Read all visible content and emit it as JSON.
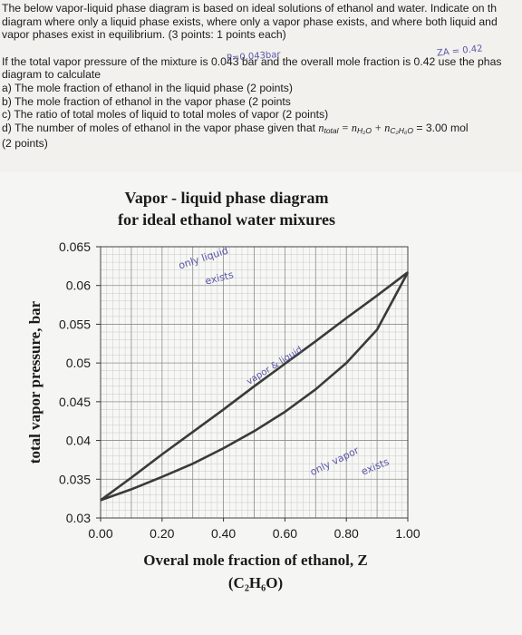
{
  "problem": {
    "intro_line1": "The below vapor-liquid phase diagram is based on ideal solutions of ethanol and water.  Indicate on th",
    "intro_line2": "diagram where only a liquid phase exists, where only a vapor phase exists, and where both liquid and",
    "intro_line3": "vapor phases exist in equilibrium.  (3 points: 1 points each)",
    "given_line1": "If the total vapor pressure of the mixture is 0.043 bar and the overall mole fraction is 0.42 use the phas",
    "given_line2": "diagram to calculate",
    "part_a": "a)  The mole fraction of ethanol in the liquid phase  (2 points)",
    "part_b": "b)  The mole fraction of ethanol in the vapor phase (2 points",
    "part_c": "c)  The ratio of total moles of liquid to total moles of vapor (2 points)",
    "part_d_text": "d)  The number of moles of ethanol in the vapor phase given that ",
    "part_d_ntotal": "n",
    "part_d_ntotal_sub": "total",
    "part_d_eq": " = n",
    "part_d_h2o_sub": "H₂O",
    "part_d_plus": " + n",
    "part_d_eth_sub": "C₂H₆O",
    "part_d_value": " = 3.00 mol",
    "part_d_points": "(2 points)"
  },
  "handwriting": {
    "pressure_note": "P=0.043bar",
    "z_note": "ZA = 0.42",
    "region_liquid_1": "only liquid",
    "region_liquid_2": "exists",
    "region_two_phase": "vapor & liquid",
    "region_vapor_1": "only vapor",
    "region_vapor_2": "exists"
  },
  "chart_data": {
    "type": "line",
    "title_line1": "Vapor - liquid phase diagram",
    "title_line2": "for ideal ethanol water mixures",
    "xlabel": "Overal mole fraction of ethanol, Z",
    "xlabel_formula": "(C₂H₆O)",
    "ylabel": "total vapor pressure, bar",
    "xlim": [
      0.0,
      1.0
    ],
    "ylim": [
      0.03,
      0.065
    ],
    "x_ticks": [
      "0.00",
      "0.20",
      "0.40",
      "0.60",
      "0.80",
      "1.00"
    ],
    "y_ticks": [
      "0.065",
      "0.06",
      "0.055",
      "0.05",
      "0.045",
      "0.04",
      "0.035",
      "0.03"
    ],
    "grid": true,
    "series": [
      {
        "x": [
          0.0,
          0.1,
          0.2,
          0.3,
          0.4,
          0.5,
          0.6,
          0.7,
          0.8,
          0.9,
          1.0
        ],
        "y": [
          0.0323,
          0.0352,
          0.0382,
          0.0411,
          0.044,
          0.047,
          0.0499,
          0.0528,
          0.0558,
          0.0587,
          0.0617
        ]
      },
      {
        "x": [
          0.0,
          0.1,
          0.2,
          0.3,
          0.4,
          0.5,
          0.6,
          0.7,
          0.8,
          0.9,
          1.0
        ],
        "y": [
          0.0323,
          0.0337,
          0.0353,
          0.037,
          0.039,
          0.0412,
          0.0437,
          0.0466,
          0.05,
          0.0543,
          0.0617
        ]
      }
    ]
  }
}
